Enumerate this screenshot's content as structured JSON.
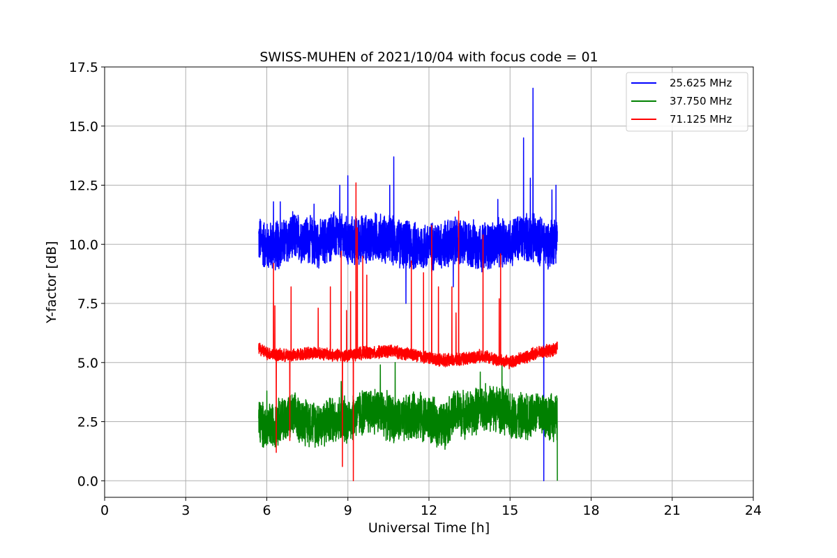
{
  "chart_data": {
    "type": "line",
    "title": "SWISS-MUHEN of 2021/10/04 with focus code = 01",
    "xlabel": "Universal Time [h]",
    "ylabel": "Y-factor [dB]",
    "xlim": [
      0,
      24
    ],
    "ylim": [
      -0.7,
      17.5
    ],
    "x_ticks": [
      0,
      3,
      6,
      9,
      12,
      15,
      18,
      21,
      24
    ],
    "x_tick_labels": [
      "0",
      "3",
      "6",
      "9",
      "12",
      "15",
      "18",
      "21",
      "24"
    ],
    "y_ticks": [
      0,
      2.5,
      5,
      7.5,
      10,
      12.5,
      15,
      17.5
    ],
    "y_tick_labels": [
      "0.0",
      "2.5",
      "5.0",
      "7.5",
      "10.0",
      "12.5",
      "15.0",
      "17.5"
    ],
    "grid": true,
    "legend_position": "top-right",
    "data_range_x": [
      5.7,
      16.75
    ],
    "series": [
      {
        "name": "25.625 MHz",
        "color": "#0000ff",
        "baseline": 10.1,
        "band": [
          9.0,
          11.3
        ],
        "spikes": [
          [
            6.25,
            11.8
          ],
          [
            6.5,
            11.8
          ],
          [
            7.75,
            11.7
          ],
          [
            8.7,
            12.5
          ],
          [
            9.0,
            12.9
          ],
          [
            10.55,
            12.5
          ],
          [
            10.7,
            13.7
          ],
          [
            11.15,
            7.5
          ],
          [
            12.9,
            8.2
          ],
          [
            14.55,
            11.9
          ],
          [
            15.5,
            14.5
          ],
          [
            15.75,
            12.8
          ],
          [
            15.85,
            16.6
          ],
          [
            16.25,
            0.0
          ],
          [
            16.55,
            12.3
          ],
          [
            16.7,
            12.5
          ]
        ],
        "x": [
          5.7,
          6.0,
          6.5,
          7.0,
          7.5,
          8.0,
          8.5,
          9.0,
          9.5,
          10.0,
          10.5,
          11.0,
          11.5,
          12.0,
          12.5,
          13.0,
          13.5,
          14.0,
          14.5,
          15.0,
          15.5,
          16.0,
          16.5,
          16.75
        ],
        "values": [
          10.2,
          9.9,
          10.0,
          10.3,
          10.2,
          10.0,
          10.4,
          10.1,
          10.2,
          10.3,
          10.2,
          10.0,
          9.9,
          9.9,
          10.0,
          10.1,
          10.0,
          9.9,
          10.0,
          10.1,
          10.3,
          10.2,
          10.0,
          10.4
        ]
      },
      {
        "name": "37.750 MHz",
        "color": "#008000",
        "baseline": 2.7,
        "band": [
          1.6,
          3.8
        ],
        "spikes": [
          [
            6.0,
            3.8
          ],
          [
            8.75,
            4.2
          ],
          [
            10.2,
            4.9
          ],
          [
            10.75,
            5.0
          ],
          [
            13.9,
            4.6
          ],
          [
            14.7,
            4.9
          ],
          [
            16.75,
            0.0
          ]
        ],
        "x": [
          5.7,
          6.0,
          6.5,
          7.0,
          7.5,
          8.0,
          8.5,
          9.0,
          9.5,
          10.0,
          10.5,
          11.0,
          11.5,
          12.0,
          12.5,
          13.0,
          13.5,
          14.0,
          14.5,
          15.0,
          15.5,
          16.0,
          16.5,
          16.75
        ],
        "values": [
          2.5,
          2.2,
          2.6,
          2.7,
          2.5,
          2.4,
          2.6,
          2.6,
          2.9,
          3.0,
          2.7,
          2.5,
          2.8,
          2.6,
          2.3,
          2.9,
          2.8,
          3.1,
          3.1,
          2.8,
          2.7,
          2.9,
          2.7,
          2.6
        ]
      },
      {
        "name": "71.125 MHz",
        "color": "#ff0000",
        "baseline": 5.3,
        "band": [
          5.0,
          5.6
        ],
        "spikes": [
          [
            6.25,
            9.2
          ],
          [
            6.3,
            7.4
          ],
          [
            6.35,
            1.2
          ],
          [
            6.9,
            8.2
          ],
          [
            6.85,
            1.7
          ],
          [
            7.9,
            7.3
          ],
          [
            8.35,
            8.2
          ],
          [
            8.75,
            9.7
          ],
          [
            8.8,
            0.6
          ],
          [
            8.95,
            7.2
          ],
          [
            9.1,
            8.0
          ],
          [
            9.2,
            0.0
          ],
          [
            9.3,
            12.6
          ],
          [
            9.35,
            10.7
          ],
          [
            9.55,
            9.5
          ],
          [
            9.7,
            8.7
          ],
          [
            11.35,
            9.3
          ],
          [
            11.8,
            8.8
          ],
          [
            12.1,
            10.8
          ],
          [
            12.35,
            8.2
          ],
          [
            12.85,
            8.2
          ],
          [
            13.0,
            7.1
          ],
          [
            13.1,
            11.4
          ],
          [
            14.0,
            10.4
          ],
          [
            14.6,
            7.7
          ],
          [
            14.65,
            9.6
          ]
        ],
        "x": [
          5.7,
          6.0,
          6.5,
          7.0,
          7.5,
          8.0,
          8.5,
          9.0,
          9.5,
          10.0,
          10.5,
          11.0,
          11.5,
          12.0,
          12.5,
          13.0,
          13.5,
          14.0,
          14.5,
          15.0,
          15.5,
          16.0,
          16.5,
          16.75
        ],
        "values": [
          5.6,
          5.4,
          5.3,
          5.3,
          5.4,
          5.4,
          5.3,
          5.3,
          5.4,
          5.4,
          5.5,
          5.4,
          5.3,
          5.2,
          5.1,
          5.1,
          5.2,
          5.3,
          5.1,
          5.0,
          5.2,
          5.4,
          5.5,
          5.6
        ]
      }
    ]
  }
}
